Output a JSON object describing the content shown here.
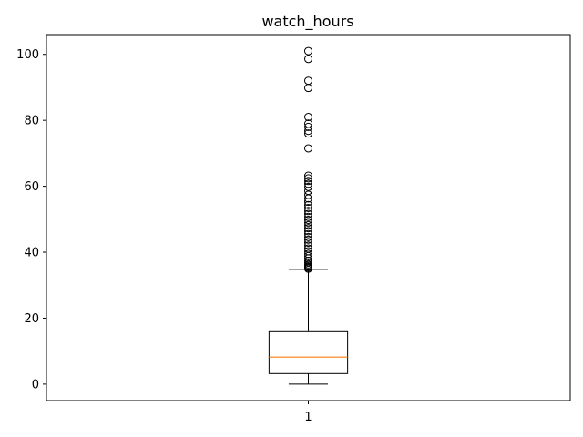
{
  "chart_data": {
    "type": "boxplot",
    "title": "watch_hours",
    "xlabel": "",
    "ylabel": "",
    "categories": [
      "1"
    ],
    "ylim": [
      -5,
      106
    ],
    "yticks": [
      0,
      20,
      40,
      60,
      80,
      100
    ],
    "grid": false,
    "colors": {
      "box": "#000000",
      "median": "#ff7f0e",
      "flier": "#000000"
    },
    "boxes": [
      {
        "label": "1",
        "whisker_low": 0,
        "q1": 3.2,
        "median": 8.2,
        "q3": 15.9,
        "whisker_high": 34.8,
        "fliers": [
          35.0,
          35.3,
          35.6,
          35.9,
          36.3,
          36.8,
          37.4,
          38.1,
          38.8,
          39.5,
          40.3,
          41.1,
          42.0,
          42.9,
          43.8,
          44.6,
          45.5,
          46.4,
          47.3,
          48.2,
          49.0,
          49.8,
          50.7,
          51.6,
          52.5,
          53.4,
          54.3,
          55.3,
          56.3,
          57.4,
          58.6,
          59.8,
          60.7,
          61.6,
          62.4,
          63.2,
          71.5,
          76.0,
          76.8,
          78.0,
          79.0,
          81.0,
          89.8,
          92.0,
          98.6,
          101.0
        ]
      }
    ]
  }
}
